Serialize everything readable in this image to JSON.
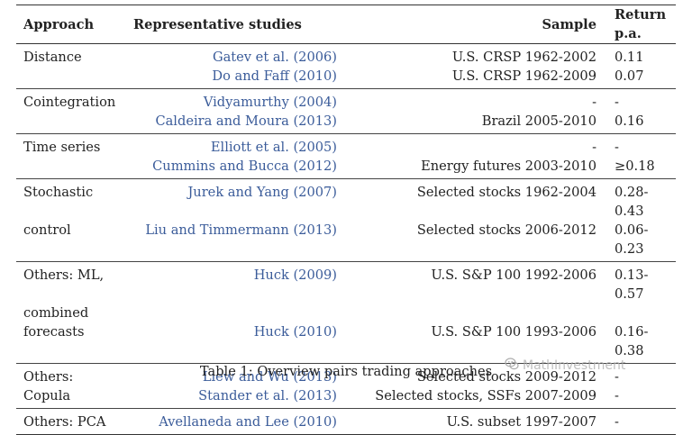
{
  "table": {
    "headers": {
      "approach": "Approach",
      "studies": "Representative studies",
      "sample": "Sample",
      "return": "Return p.a."
    },
    "groups": [
      {
        "rows": [
          {
            "approach": "Distance",
            "study": "Gatev et al. (2006)",
            "sample": "U.S. CRSP 1962-2002",
            "ret": "0.11"
          },
          {
            "approach": "",
            "study": "Do and Faff (2010)",
            "sample": "U.S. CRSP 1962-2009",
            "ret": "0.07"
          }
        ]
      },
      {
        "rows": [
          {
            "approach": "Cointegration",
            "study": "Vidyamurthy (2004)",
            "sample": "-",
            "ret": "-"
          },
          {
            "approach": "",
            "study": "Caldeira and Moura (2013)",
            "sample": "Brazil 2005-2010",
            "ret": "0.16"
          }
        ]
      },
      {
        "rows": [
          {
            "approach": "Time series",
            "study": "Elliott et al. (2005)",
            "sample": "-",
            "ret": "-"
          },
          {
            "approach": "",
            "study": "Cummins and Bucca (2012)",
            "sample": "Energy futures 2003-2010",
            "ret": "≥0.18"
          }
        ]
      },
      {
        "rows": [
          {
            "approach": "Stochastic",
            "study": "Jurek and Yang (2007)",
            "sample": "Selected stocks 1962-2004",
            "ret": "0.28-0.43"
          },
          {
            "approach": "control",
            "study": "Liu and Timmermann (2013)",
            "sample": "Selected stocks 2006-2012",
            "ret": "0.06-0.23"
          }
        ]
      },
      {
        "rows": [
          {
            "approach": "Others: ML,",
            "study": "Huck (2009)",
            "sample": "U.S. S&P 100 1992-2006",
            "ret": "0.13-0.57"
          },
          {
            "approach": "combined",
            "study": "",
            "sample": "",
            "ret": ""
          },
          {
            "approach": "forecasts",
            "study": "Huck (2010)",
            "sample": "U.S. S&P 100 1993-2006",
            "ret": "0.16-0.38"
          }
        ]
      },
      {
        "rows": [
          {
            "approach": "Others:",
            "study": "Liew and Wu (2013)",
            "sample": "Selected stocks 2009-2012",
            "ret": "-"
          },
          {
            "approach": "Copula",
            "study": "Stander et al. (2013)",
            "sample": "Selected stocks, SSFs 2007-2009",
            "ret": "-"
          }
        ]
      },
      {
        "rows": [
          {
            "approach": "Others: PCA",
            "study": "Avellaneda and Lee (2010)",
            "sample": "U.S. subset 1997-2007",
            "ret": "-"
          }
        ]
      }
    ]
  },
  "caption": "Table 1: Overview pairs trading approaches",
  "watermark": {
    "text": "MathInvestment",
    "icon": "wechat-icon",
    "color": "#aaaaaa"
  },
  "colors": {
    "citation": "#3b5c9a",
    "text": "#222222",
    "rule": "#333333"
  }
}
